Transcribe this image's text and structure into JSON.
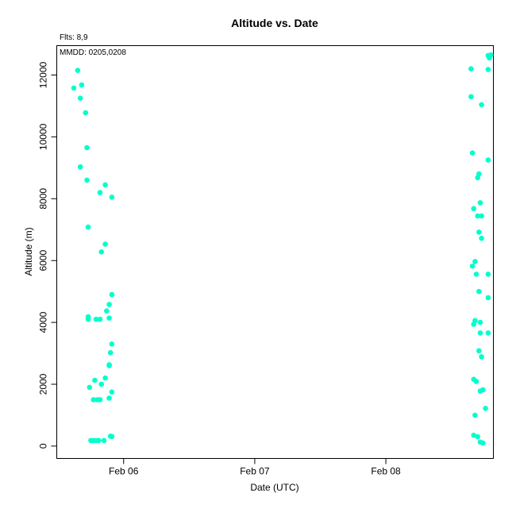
{
  "chart_data": {
    "type": "scatter",
    "title": "Altitude  vs. Date",
    "annotations": [
      "Flts: 8,9",
      "MMDD: 0205,0208"
    ],
    "xlabel": "Date (UTC)",
    "ylabel": "Altitude (m)",
    "x_tick_labels": [
      "Feb 06",
      "Feb 07",
      "Feb 08"
    ],
    "x_ticks": [
      6,
      7,
      8
    ],
    "y_ticks": [
      0,
      2000,
      4000,
      6000,
      8000,
      10000,
      12000
    ],
    "xlim": [
      5.49,
      8.82
    ],
    "ylim": [
      -400,
      12950
    ],
    "grid": false,
    "point_color": "#00FFCC",
    "x_unit": "day of February 2008 (UTC)",
    "series": [
      {
        "x": [
          5.65,
          5.62,
          5.68,
          5.67,
          5.71,
          5.72,
          5.67,
          5.72,
          5.73,
          5.82,
          5.86,
          5.91,
          5.73,
          5.86,
          5.83,
          5.91,
          5.73,
          5.79,
          5.82,
          5.89,
          5.87,
          5.89,
          5.91,
          5.9,
          5.89,
          5.89,
          5.78,
          5.86,
          5.74,
          5.83,
          5.91,
          5.89,
          5.77,
          5.8,
          5.82,
          5.75,
          5.77,
          5.79,
          5.81,
          5.85,
          5.9,
          5.91
        ],
        "y": [
          12150,
          11580,
          11680,
          11250,
          10780,
          9650,
          9030,
          8600,
          7080,
          8200,
          8450,
          8050,
          4180,
          6530,
          6280,
          4900,
          4100,
          4100,
          4100,
          4140,
          4370,
          4580,
          3300,
          3020,
          2630,
          2600,
          2130,
          2200,
          1900,
          2000,
          1750,
          1550,
          1500,
          1500,
          1500,
          180,
          180,
          180,
          180,
          180,
          320,
          310
        ]
      },
      {
        "x": [
          8.65,
          8.78,
          8.8,
          8.79,
          8.65,
          8.78,
          8.66,
          8.78,
          8.73,
          8.71,
          8.7,
          8.67,
          8.72,
          8.73,
          8.66,
          8.7,
          8.68,
          8.71,
          8.73,
          8.78,
          8.69,
          8.72,
          8.78,
          8.68,
          8.67,
          8.71,
          8.72,
          8.78,
          8.67,
          8.69,
          8.71,
          8.73,
          8.74,
          8.72,
          8.76,
          8.68,
          8.67,
          8.7,
          8.72,
          8.74
        ],
        "y": [
          12200,
          12630,
          12650,
          12550,
          11300,
          12180,
          9480,
          9250,
          11040,
          8800,
          8680,
          7680,
          7870,
          7440,
          5820,
          7440,
          5970,
          6920,
          6720,
          5560,
          5560,
          4000,
          4800,
          4060,
          3940,
          5000,
          3660,
          3660,
          2160,
          2090,
          3080,
          2890,
          1820,
          1780,
          1220,
          1000,
          350,
          300,
          130,
          100
        ]
      }
    ]
  }
}
